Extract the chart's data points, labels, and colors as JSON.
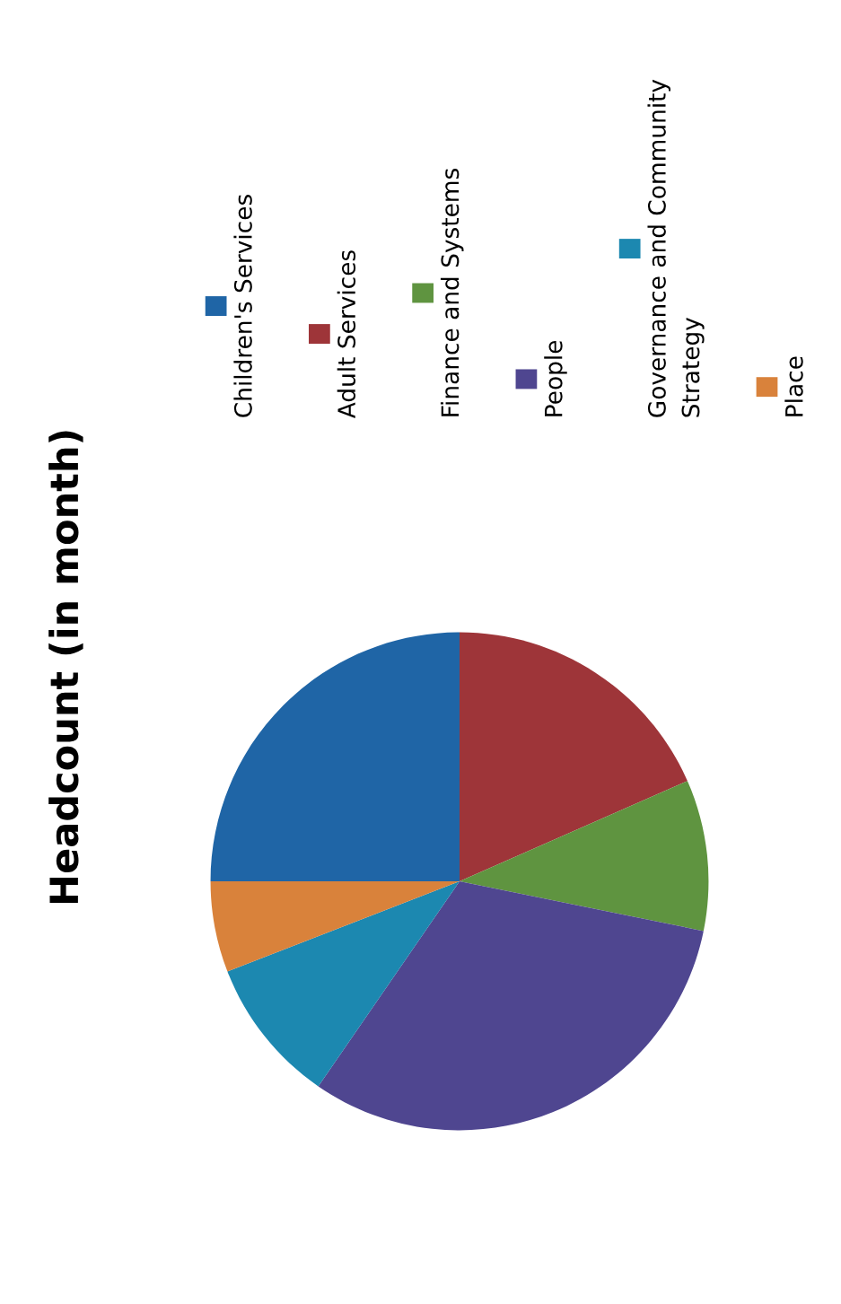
{
  "chart_data": {
    "type": "pie",
    "title": "Headcount (in month)",
    "categories": [
      "Children's Services",
      "Adult Services",
      "Finance and Systems",
      "People",
      "Governance and Community Strategy",
      "Place"
    ],
    "values": [
      25.0,
      18.4,
      9.8,
      31.4,
      9.5,
      5.9
    ],
    "colors": [
      "#1f65a6",
      "#9e3539",
      "#5f9440",
      "#4f4690",
      "#1c88b0",
      "#d9823b"
    ],
    "legend": "right"
  }
}
